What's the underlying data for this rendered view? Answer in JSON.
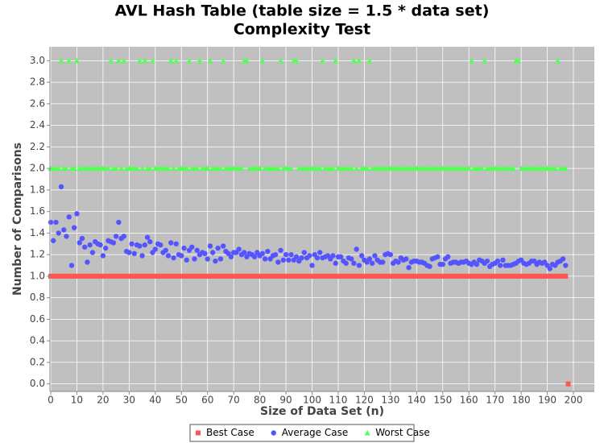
{
  "chart_data": {
    "type": "scatter",
    "title": [
      "AVL Hash Table (table size = 1.5 * data set)",
      "Complexity Test"
    ],
    "x_label": "Size of Data Set (n)",
    "y_label": "Number of Comparisons",
    "xlim": [
      0,
      208
    ],
    "ylim": [
      -0.07,
      3.13
    ],
    "xticks": [
      0,
      10,
      20,
      30,
      40,
      50,
      60,
      70,
      80,
      90,
      100,
      110,
      120,
      130,
      140,
      150,
      160,
      170,
      180,
      190,
      200
    ],
    "yticks": [
      {
        "value": 0,
        "label": "0.0"
      },
      {
        "value": 0.2,
        "label": "0.2"
      },
      {
        "value": 0.4,
        "label": "0.4"
      },
      {
        "value": 0.6,
        "label": "0.6"
      },
      {
        "value": 0.8,
        "label": "0.8"
      },
      {
        "value": 1,
        "label": "1.0"
      },
      {
        "value": 1.2,
        "label": "1.2"
      },
      {
        "value": 1.4,
        "label": "1.4"
      },
      {
        "value": 1.6,
        "label": "1.6"
      },
      {
        "value": 1.8,
        "label": "1.8"
      },
      {
        "value": 2,
        "label": "2.0"
      },
      {
        "value": 2.2,
        "label": "2.2"
      },
      {
        "value": 2.4,
        "label": "2.4"
      },
      {
        "value": 2.6,
        "label": "2.6"
      },
      {
        "value": 2.8,
        "label": "2.8"
      },
      {
        "value": 3,
        "label": "3.0"
      }
    ],
    "grid": true,
    "legend": "bottom",
    "x": [
      0,
      1,
      2,
      3,
      4,
      5,
      6,
      7,
      8,
      9,
      10,
      11,
      12,
      13,
      14,
      15,
      16,
      17,
      18,
      19,
      20,
      21,
      22,
      23,
      24,
      25,
      26,
      27,
      28,
      29,
      30,
      31,
      32,
      33,
      34,
      35,
      36,
      37,
      38,
      39,
      40,
      41,
      42,
      43,
      44,
      45,
      46,
      47,
      48,
      49,
      50,
      51,
      52,
      53,
      54,
      55,
      56,
      57,
      58,
      59,
      60,
      61,
      62,
      63,
      64,
      65,
      66,
      67,
      68,
      69,
      70,
      71,
      72,
      73,
      74,
      75,
      76,
      77,
      78,
      79,
      80,
      81,
      82,
      83,
      84,
      85,
      86,
      87,
      88,
      89,
      90,
      91,
      92,
      93,
      94,
      95,
      96,
      97,
      98,
      99,
      100,
      101,
      102,
      103,
      104,
      105,
      106,
      107,
      108,
      109,
      110,
      111,
      112,
      113,
      114,
      115,
      116,
      117,
      118,
      119,
      120,
      121,
      122,
      123,
      124,
      125,
      126,
      127,
      128,
      129,
      130,
      131,
      132,
      133,
      134,
      135,
      136,
      137,
      138,
      139,
      140,
      141,
      142,
      143,
      144,
      145,
      146,
      147,
      148,
      149,
      150,
      151,
      152,
      153,
      154,
      155,
      156,
      157,
      158,
      159,
      160,
      161,
      162,
      163,
      164,
      165,
      166,
      167,
      168,
      169,
      170,
      171,
      172,
      173,
      174,
      175,
      176,
      177,
      178,
      179,
      180,
      181,
      182,
      183,
      184,
      185,
      186,
      187,
      188,
      189,
      190,
      191,
      192,
      193,
      194,
      195,
      196,
      197,
      198
    ],
    "series": [
      {
        "name": "Best Case",
        "color": "#ff5555",
        "marker": "square",
        "values": [
          1,
          1,
          1,
          1,
          1,
          1,
          1,
          1,
          1,
          1,
          1,
          1,
          1,
          1,
          1,
          1,
          1,
          1,
          1,
          1,
          1,
          1,
          1,
          1,
          1,
          1,
          1,
          1,
          1,
          1,
          1,
          1,
          1,
          1,
          1,
          1,
          1,
          1,
          1,
          1,
          1,
          1,
          1,
          1,
          1,
          1,
          1,
          1,
          1,
          1,
          1,
          1,
          1,
          1,
          1,
          1,
          1,
          1,
          1,
          1,
          1,
          1,
          1,
          1,
          1,
          1,
          1,
          1,
          1,
          1,
          1,
          1,
          1,
          1,
          1,
          1,
          1,
          1,
          1,
          1,
          1,
          1,
          1,
          1,
          1,
          1,
          1,
          1,
          1,
          1,
          1,
          1,
          1,
          1,
          1,
          1,
          1,
          1,
          1,
          1,
          1,
          1,
          1,
          1,
          1,
          1,
          1,
          1,
          1,
          1,
          1,
          1,
          1,
          1,
          1,
          1,
          1,
          1,
          1,
          1,
          1,
          1,
          1,
          1,
          1,
          1,
          1,
          1,
          1,
          1,
          1,
          1,
          1,
          1,
          1,
          1,
          1,
          1,
          1,
          1,
          1,
          1,
          1,
          1,
          1,
          1,
          1,
          1,
          1,
          1,
          1,
          1,
          1,
          1,
          1,
          1,
          1,
          1,
          1,
          1,
          1,
          1,
          1,
          1,
          1,
          1,
          1,
          1,
          1,
          1,
          1,
          1,
          1,
          1,
          1,
          1,
          1,
          1,
          1,
          1,
          1,
          1,
          1,
          1,
          1,
          1,
          1,
          1,
          1,
          1,
          1,
          1,
          1,
          1,
          1,
          1,
          1,
          1,
          0
        ]
      },
      {
        "name": "Average Case",
        "color": "#5555ff",
        "marker": "circle",
        "values": [
          1.5,
          1.33,
          1.5,
          1.4,
          1.83,
          1.43,
          1.37,
          1.55,
          1.1,
          1.45,
          1.58,
          1.31,
          1.35,
          1.27,
          1.13,
          1.29,
          1.22,
          1.32,
          1.3,
          1.29,
          1.19,
          1.26,
          1.33,
          1.32,
          1.31,
          1.37,
          1.5,
          1.35,
          1.37,
          1.23,
          1.22,
          1.3,
          1.21,
          1.29,
          1.28,
          1.19,
          1.29,
          1.36,
          1.32,
          1.22,
          1.25,
          1.3,
          1.29,
          1.22,
          1.24,
          1.19,
          1.31,
          1.17,
          1.3,
          1.2,
          1.19,
          1.26,
          1.15,
          1.24,
          1.27,
          1.16,
          1.24,
          1.2,
          1.22,
          1.21,
          1.16,
          1.28,
          1.22,
          1.14,
          1.26,
          1.16,
          1.28,
          1.23,
          1.21,
          1.18,
          1.22,
          1.22,
          1.25,
          1.2,
          1.22,
          1.18,
          1.21,
          1.2,
          1.18,
          1.22,
          1.19,
          1.21,
          1.16,
          1.23,
          1.16,
          1.19,
          1.2,
          1.13,
          1.24,
          1.15,
          1.2,
          1.15,
          1.2,
          1.15,
          1.18,
          1.14,
          1.17,
          1.22,
          1.17,
          1.19,
          1.1,
          1.2,
          1.17,
          1.22,
          1.17,
          1.18,
          1.19,
          1.16,
          1.19,
          1.12,
          1.18,
          1.18,
          1.14,
          1.12,
          1.17,
          1.16,
          1.12,
          1.25,
          1.1,
          1.19,
          1.15,
          1.13,
          1.16,
          1.12,
          1.19,
          1.15,
          1.13,
          1.13,
          1.2,
          1.21,
          1.2,
          1.12,
          1.14,
          1.13,
          1.17,
          1.15,
          1.16,
          1.08,
          1.13,
          1.14,
          1.14,
          1.13,
          1.13,
          1.12,
          1.1,
          1.09,
          1.16,
          1.17,
          1.18,
          1.11,
          1.11,
          1.16,
          1.18,
          1.12,
          1.13,
          1.13,
          1.12,
          1.13,
          1.13,
          1.14,
          1.12,
          1.11,
          1.13,
          1.11,
          1.15,
          1.14,
          1.12,
          1.14,
          1.09,
          1.11,
          1.12,
          1.14,
          1.1,
          1.15,
          1.1,
          1.1,
          1.1,
          1.11,
          1.12,
          1.14,
          1.15,
          1.12,
          1.11,
          1.12,
          1.14,
          1.14,
          1.11,
          1.13,
          1.12,
          1.13,
          1.1,
          1.07,
          1.11,
          1.1,
          1.13,
          1.14,
          1.16,
          1.1,
          null
        ]
      },
      {
        "name": "Worst Case",
        "color": "#55ff55",
        "marker": "triangle",
        "values": [
          2,
          2,
          2,
          2,
          3,
          2,
          2,
          3,
          2,
          2,
          3,
          2,
          2,
          2,
          2,
          2,
          2,
          2,
          2,
          2,
          2,
          2,
          2,
          3,
          2,
          2,
          3,
          2,
          3,
          2,
          2,
          2,
          2,
          2,
          3,
          2,
          3,
          2,
          2,
          3,
          2,
          2,
          2,
          2,
          2,
          2,
          3,
          2,
          3,
          2,
          2,
          2,
          2,
          3,
          2,
          2,
          2,
          3,
          2,
          2,
          2,
          3,
          2,
          2,
          2,
          2,
          3,
          2,
          2,
          2,
          2,
          2,
          2,
          2,
          3,
          3,
          2,
          2,
          2,
          2,
          2,
          3,
          2,
          2,
          2,
          2,
          2,
          2,
          3,
          2,
          2,
          2,
          2,
          3,
          3,
          2,
          2,
          2,
          2,
          2,
          2,
          2,
          2,
          2,
          3,
          2,
          2,
          2,
          2,
          3,
          2,
          2,
          2,
          2,
          2,
          2,
          3,
          2,
          3,
          2,
          2,
          2,
          3,
          2,
          2,
          2,
          2,
          2,
          2,
          2,
          2,
          2,
          2,
          2,
          2,
          2,
          2,
          2,
          2,
          2,
          2,
          2,
          2,
          2,
          2,
          2,
          2,
          2,
          2,
          2,
          2,
          2,
          2,
          2,
          2,
          2,
          2,
          2,
          2,
          2,
          2,
          3,
          2,
          2,
          2,
          2,
          3,
          2,
          2,
          2,
          2,
          2,
          2,
          2,
          2,
          2,
          2,
          2,
          3,
          3,
          2,
          2,
          2,
          2,
          2,
          2,
          2,
          2,
          2,
          2,
          2,
          2,
          2,
          2,
          3,
          2,
          2,
          2,
          null
        ]
      }
    ]
  }
}
